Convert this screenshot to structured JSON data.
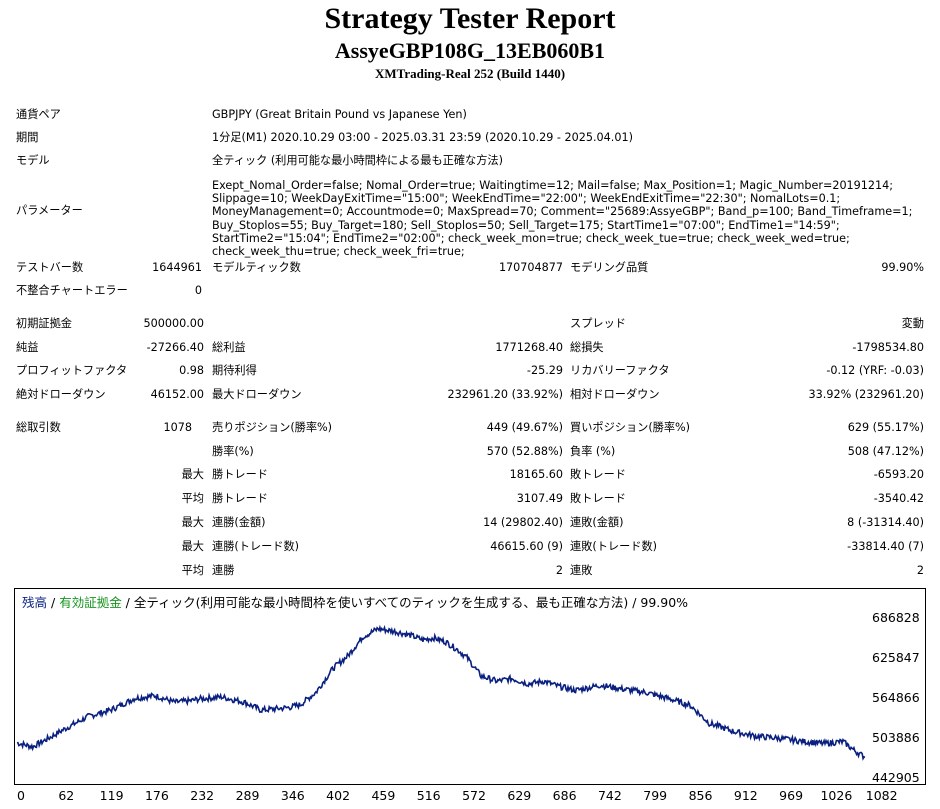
{
  "header": {
    "title": "Strategy Tester Report",
    "subtitle": "AssyeGBP108G_13EB060B1",
    "server": "XMTrading-Real 252 (Build 1440)"
  },
  "info": {
    "symbol_label": "通貨ペア",
    "symbol_value": "GBPJPY (Great Britain Pound vs Japanese Yen)",
    "period_label": "期間",
    "period_value": "1分足(M1) 2020.10.29 03:00 - 2025.03.31 23:59 (2020.10.29 - 2025.04.01)",
    "model_label": "モデル",
    "model_value": "全ティック (利用可能な最小時間枠による最も正確な方法)",
    "params_label": "パラメーター",
    "params_value": "Exept_Nomal_Order=false; Nomal_Order=true; Waitingtime=12; Mail=false; Max_Position=1; Magic_Number=20191214; Slippage=10; WeekDayExitTime=\"15:00\"; WeekEndTime=\"22:00\"; WeekEndExitTime=\"22:30\"; NomalLots=0.1; MoneyManagement=0; Accountmode=0; MaxSpread=70; Comment=\"25689:AssyeGBP\"; Band_p=100; Band_Timeframe=1; Buy_Stoplos=55; Buy_Target=180; Sell_Stoplos=50; Sell_Target=175; StartTime1=\"07:00\"; EndTime1=\"14:59\"; StartTime2=\"15:04\"; EndTime2=\"02:00\"; check_week_mon=true; check_week_tue=true; check_week_wed=true; check_week_thu=true; check_week_fri=true;"
  },
  "test": {
    "bars_label": "テストバー数",
    "bars_value": "1644961",
    "ticks_label": "モデルティック数",
    "ticks_value": "170704877",
    "quality_label": "モデリング品質",
    "quality_value": "99.90%",
    "mismatch_label": "不整合チャートエラー",
    "mismatch_value": "0"
  },
  "results": {
    "deposit_label": "初期証拠金",
    "deposit_value": "500000.00",
    "spread_label": "スプレッド",
    "spread_value": "変動",
    "net_label": "純益",
    "net_value": "-27266.40",
    "gross_profit_label": "総利益",
    "gross_profit_value": "1771268.40",
    "gross_loss_label": "総損失",
    "gross_loss_value": "-1798534.80",
    "pf_label": "プロフィットファクタ",
    "pf_value": "0.98",
    "expected_label": "期待利得",
    "expected_value": "-25.29",
    "recovery_label": "リカバリーファクタ",
    "recovery_value": "-0.12 (YRF: -0.03)",
    "abs_dd_label": "絶対ドローダウン",
    "abs_dd_value": "46152.00",
    "max_dd_label": "最大ドローダウン",
    "max_dd_value": "232961.20 (33.92%)",
    "rel_dd_label": "相対ドローダウン",
    "rel_dd_value": "33.92% (232961.20)",
    "total_label": "総取引数",
    "total_value": "1078",
    "short_label": "売りポジション(勝率%)",
    "short_value": "449 (49.67%)",
    "long_label": "買いポジション(勝率%)",
    "long_value": "629 (55.17%)",
    "win_rate_label": "勝率(%)",
    "win_rate_value": "570 (52.88%)",
    "loss_rate_label": "負率 (%)",
    "loss_rate_value": "508 (47.12%)",
    "largest_label": "最大",
    "largest_win_label": "勝トレード",
    "largest_win_value": "18165.60",
    "largest_loss_label": "敗トレード",
    "largest_loss_value": "-6593.20",
    "average_label": "平均",
    "average_win_label": "勝トレード",
    "average_win_value": "3107.49",
    "average_loss_label": "敗トレード",
    "average_loss_value": "-3540.42",
    "max1_label": "最大",
    "cons_wins_money_label": "連勝(金額)",
    "cons_wins_money_value": "14 (29802.40)",
    "cons_losses_money_label": "連敗(金額)",
    "cons_losses_money_value": "8 (-31314.40)",
    "max2_label": "最大",
    "cons_profit_label": "連勝(トレード数)",
    "cons_profit_value": "46615.60 (9)",
    "cons_loss_label": "連敗(トレード数)",
    "cons_loss_value": "-33814.40 (7)",
    "avg2_label": "平均",
    "avg_cons_win_label": "連勝",
    "avg_cons_win_value": "2",
    "avg_cons_loss_label": "連敗",
    "avg_cons_loss_value": "2"
  },
  "chart_legend": {
    "balance": "残高",
    "sep1": " / ",
    "equity": "有効証拠金",
    "rest": " / 全ティック(利用可能な最小時間枠を使いすべてのティックを生成する、最も正確な方法) / 99.90%"
  },
  "colors": {
    "balance": "#0a2080",
    "equity": "#14961e"
  },
  "chart_data": {
    "type": "line",
    "title": "",
    "xlabel": "",
    "ylabel": "",
    "y_ticks": [
      "686828",
      "625847",
      "564866",
      "503886",
      "442905"
    ],
    "x_ticks": [
      "0",
      "62",
      "119",
      "176",
      "232",
      "289",
      "346",
      "402",
      "459",
      "516",
      "572",
      "629",
      "686",
      "742",
      "799",
      "856",
      "912",
      "969",
      "1026",
      "1082"
    ],
    "xlim": [
      0,
      1078
    ],
    "ylim": [
      442905,
      686828
    ],
    "series": [
      {
        "points": [
          [
            0,
            498000
          ],
          [
            20,
            492000
          ],
          [
            40,
            505000
          ],
          [
            62,
            520000
          ],
          [
            90,
            538000
          ],
          [
            119,
            548000
          ],
          [
            150,
            566000
          ],
          [
            176,
            570000
          ],
          [
            200,
            560000
          ],
          [
            220,
            562000
          ],
          [
            232,
            565000
          ],
          [
            260,
            568000
          ],
          [
            289,
            560000
          ],
          [
            310,
            548000
          ],
          [
            330,
            550000
          ],
          [
            346,
            552000
          ],
          [
            360,
            556000
          ],
          [
            380,
            575000
          ],
          [
            402,
            612000
          ],
          [
            420,
            630000
          ],
          [
            440,
            660000
          ],
          [
            459,
            672000
          ],
          [
            480,
            668000
          ],
          [
            500,
            662000
          ],
          [
            516,
            655000
          ],
          [
            530,
            658000
          ],
          [
            545,
            652000
          ],
          [
            560,
            640000
          ],
          [
            572,
            628000
          ],
          [
            590,
            600000
          ],
          [
            610,
            592000
          ],
          [
            629,
            596000
          ],
          [
            650,
            588000
          ],
          [
            670,
            592000
          ],
          [
            686,
            585000
          ],
          [
            710,
            578000
          ],
          [
            742,
            586000
          ],
          [
            770,
            580000
          ],
          [
            799,
            575000
          ],
          [
            830,
            565000
          ],
          [
            856,
            555000
          ],
          [
            880,
            528000
          ],
          [
            912,
            515000
          ],
          [
            940,
            508000
          ],
          [
            969,
            505000
          ],
          [
            1000,
            500000
          ],
          [
            1026,
            497000
          ],
          [
            1050,
            500000
          ],
          [
            1065,
            486000
          ],
          [
            1078,
            476000
          ]
        ]
      }
    ]
  }
}
